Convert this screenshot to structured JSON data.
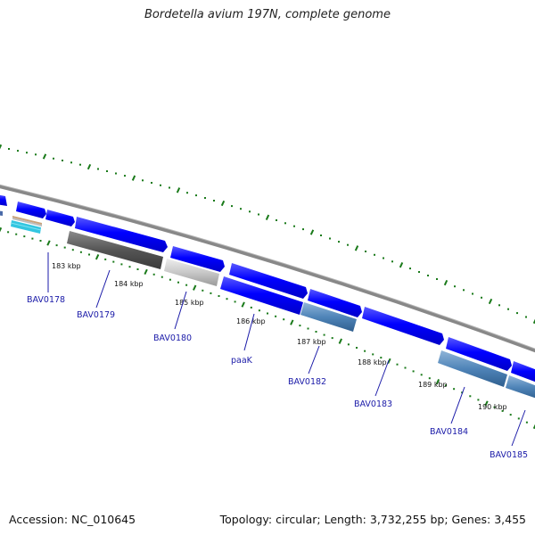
{
  "title": "Bordetella avium 197N, complete genome",
  "footer": {
    "accession_label": "Accession:",
    "accession": "NC_010645",
    "topology_text": "Topology: circular; Length: 3,732,255 bp; Genes: 3,455"
  },
  "kbp_labels": [
    "183 kbp",
    "184 kbp",
    "185 kbp",
    "186 kbp",
    "187 kbp",
    "188 kbp",
    "189 kbp",
    "190 kbp"
  ],
  "gene_labels": [
    "BAV0178",
    "BAV0179",
    "BAV0180",
    "paaK",
    "BAV0182",
    "BAV0183",
    "BAV0184",
    "BAV0185"
  ],
  "colors": {
    "backbone": "#8a8a8a",
    "forward_cds": "#0000ff",
    "tick": "#1a7a1a",
    "label": "#1a1aa8"
  }
}
